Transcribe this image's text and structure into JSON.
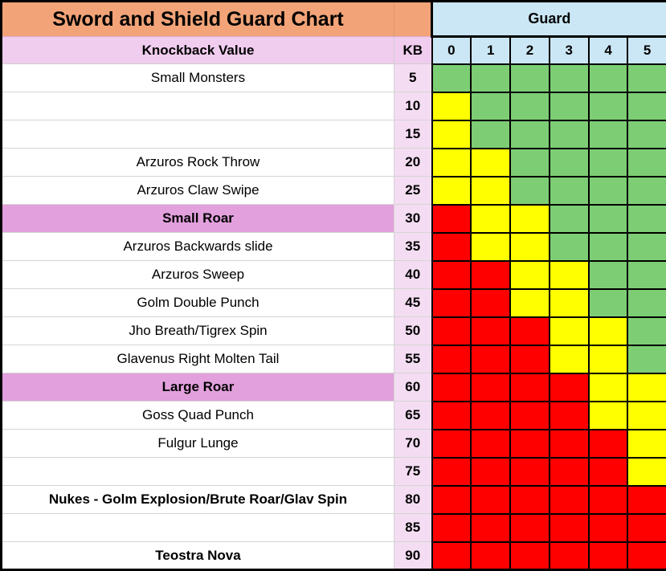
{
  "title": "Sword and Shield Guard Chart",
  "colors": {
    "title_bg": "#F2A478",
    "header_pink": "#F0CCEE",
    "kb_col_pink": "#F4DCF2",
    "highlight_pink": "#E2A0DD",
    "blue": "#CBE7F5",
    "green": "#7DCD74",
    "yellow": "#FFFF00",
    "red": "#FF0000"
  },
  "chart_data": {
    "type": "heatmap",
    "title": "Sword and Shield Guard Chart",
    "column_group_label": "Guard",
    "row_header_label": "Knockback Value",
    "kb_header_label": "KB",
    "guard_levels": [
      "0",
      "1",
      "2",
      "3",
      "4",
      "5"
    ],
    "cell_color_legend": {
      "green": "#7DCD74",
      "yellow": "#FFFF00",
      "red": "#FF0000"
    },
    "rows": [
      {
        "label": "Small Monsters",
        "kb": 5,
        "highlight": false,
        "bold": false,
        "cells": [
          "green",
          "green",
          "green",
          "green",
          "green",
          "green"
        ]
      },
      {
        "label": "",
        "kb": 10,
        "highlight": false,
        "bold": false,
        "cells": [
          "yellow",
          "green",
          "green",
          "green",
          "green",
          "green"
        ]
      },
      {
        "label": "",
        "kb": 15,
        "highlight": false,
        "bold": false,
        "cells": [
          "yellow",
          "green",
          "green",
          "green",
          "green",
          "green"
        ]
      },
      {
        "label": "Arzuros Rock Throw",
        "kb": 20,
        "highlight": false,
        "bold": false,
        "cells": [
          "yellow",
          "yellow",
          "green",
          "green",
          "green",
          "green"
        ]
      },
      {
        "label": "Arzuros Claw Swipe",
        "kb": 25,
        "highlight": false,
        "bold": false,
        "cells": [
          "yellow",
          "yellow",
          "green",
          "green",
          "green",
          "green"
        ]
      },
      {
        "label": "Small Roar",
        "kb": 30,
        "highlight": true,
        "bold": true,
        "cells": [
          "red",
          "yellow",
          "yellow",
          "green",
          "green",
          "green"
        ]
      },
      {
        "label": "Arzuros Backwards slide",
        "kb": 35,
        "highlight": false,
        "bold": false,
        "cells": [
          "red",
          "yellow",
          "yellow",
          "green",
          "green",
          "green"
        ]
      },
      {
        "label": "Arzuros Sweep",
        "kb": 40,
        "highlight": false,
        "bold": false,
        "cells": [
          "red",
          "red",
          "yellow",
          "yellow",
          "green",
          "green"
        ]
      },
      {
        "label": "Golm Double Punch",
        "kb": 45,
        "highlight": false,
        "bold": false,
        "cells": [
          "red",
          "red",
          "yellow",
          "yellow",
          "green",
          "green"
        ]
      },
      {
        "label": "Jho Breath/Tigrex Spin",
        "kb": 50,
        "highlight": false,
        "bold": false,
        "cells": [
          "red",
          "red",
          "red",
          "yellow",
          "yellow",
          "green"
        ]
      },
      {
        "label": "Glavenus Right Molten Tail",
        "kb": 55,
        "highlight": false,
        "bold": false,
        "cells": [
          "red",
          "red",
          "red",
          "yellow",
          "yellow",
          "green"
        ]
      },
      {
        "label": "Large Roar",
        "kb": 60,
        "highlight": true,
        "bold": true,
        "cells": [
          "red",
          "red",
          "red",
          "red",
          "yellow",
          "yellow"
        ]
      },
      {
        "label": "Goss Quad Punch",
        "kb": 65,
        "highlight": false,
        "bold": false,
        "cells": [
          "red",
          "red",
          "red",
          "red",
          "yellow",
          "yellow"
        ]
      },
      {
        "label": "Fulgur Lunge",
        "kb": 70,
        "highlight": false,
        "bold": false,
        "cells": [
          "red",
          "red",
          "red",
          "red",
          "red",
          "yellow"
        ]
      },
      {
        "label": "",
        "kb": 75,
        "highlight": false,
        "bold": false,
        "cells": [
          "red",
          "red",
          "red",
          "red",
          "red",
          "yellow"
        ]
      },
      {
        "label": "Nukes - Golm Explosion/Brute Roar/Glav Spin",
        "kb": 80,
        "highlight": false,
        "bold": true,
        "cells": [
          "red",
          "red",
          "red",
          "red",
          "red",
          "red"
        ]
      },
      {
        "label": "",
        "kb": 85,
        "highlight": false,
        "bold": false,
        "cells": [
          "red",
          "red",
          "red",
          "red",
          "red",
          "red"
        ]
      },
      {
        "label": "Teostra Nova",
        "kb": 90,
        "highlight": false,
        "bold": true,
        "cells": [
          "red",
          "red",
          "red",
          "red",
          "red",
          "red"
        ]
      }
    ]
  }
}
